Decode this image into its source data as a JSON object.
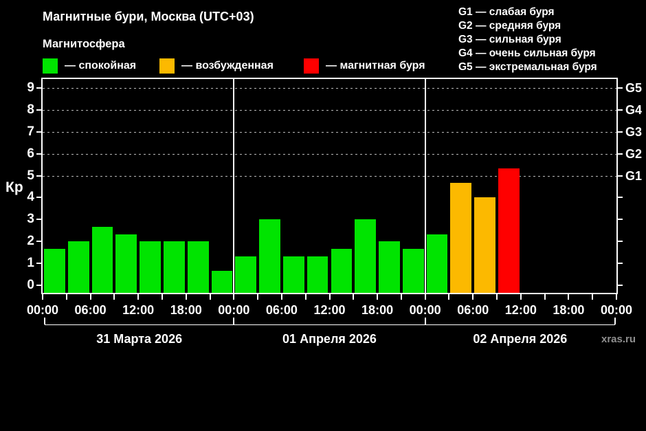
{
  "title": "Магнитные бури, Москва (UTC+03)",
  "subtitle": "Магнитосфера",
  "watermark": "xras.ru",
  "colors": {
    "quiet": "#00e400",
    "excited": "#fcb900",
    "storm": "#fe0000",
    "background": "#000000",
    "axis": "#ffffff",
    "gridline": "#b9b9b9"
  },
  "legend": {
    "items": [
      {
        "state": "quiet",
        "label": "— спокойная"
      },
      {
        "state": "excited",
        "label": "— возбужденная"
      },
      {
        "state": "storm",
        "label": "— магнитная буря"
      }
    ]
  },
  "g_scale_legend": [
    "G1 — слабая буря",
    "G2 — средняя буря",
    "G3 — сильная буря",
    "G4 — очень сильная буря",
    "G5 — экстремальная буря"
  ],
  "chart_data": {
    "type": "bar",
    "title": "Магнитные бури, Москва (UTC+03)",
    "ylabel": "Кр",
    "ylim": [
      0,
      9
    ],
    "yticks": [
      0,
      1,
      2,
      3,
      4,
      5,
      6,
      7,
      8,
      9
    ],
    "gridlines_at": [
      5,
      6,
      7,
      8,
      9
    ],
    "grid": "dashed horizontal at G-levels only",
    "legend_position": "top",
    "interval_hours": 3,
    "thresholds": {
      "excited_min": 4,
      "storm_min": 5
    },
    "g_levels": [
      {
        "kp": 5,
        "label": "G1"
      },
      {
        "kp": 6,
        "label": "G2"
      },
      {
        "kp": 7,
        "label": "G3"
      },
      {
        "kp": 8,
        "label": "G4"
      },
      {
        "kp": 9,
        "label": "G5"
      }
    ],
    "x_tick_labels": [
      "00:00",
      "06:00",
      "12:00",
      "18:00",
      "00:00",
      "06:00",
      "12:00",
      "18:00",
      "00:00",
      "06:00",
      "12:00",
      "18:00",
      "00:00"
    ],
    "days": [
      {
        "date": "31 Марта 2026",
        "values": [
          1.67,
          2,
          2.67,
          2.33,
          2,
          2,
          2,
          0.67
        ]
      },
      {
        "date": "01 Апреля 2026",
        "values": [
          1.33,
          3,
          1.33,
          1.33,
          1.67,
          3,
          2,
          1.67
        ]
      },
      {
        "date": "02 Апреля 2026",
        "values": [
          2.33,
          4.67,
          4,
          5.33,
          null,
          null,
          null,
          null
        ]
      }
    ]
  }
}
